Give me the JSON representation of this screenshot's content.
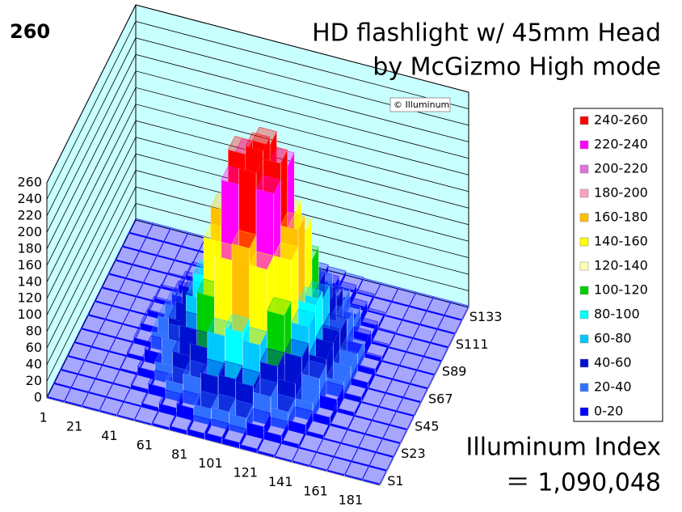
{
  "chart_data": {
    "type": "surface",
    "title": "HD flashlight w/ 45mm Head",
    "subtitle": "by McGizmo  High mode",
    "peak": 260,
    "watermark": "© Illuminum",
    "annotations": [
      "Illuminum Index",
      "＝ 1,090,048"
    ],
    "x_categories": [
      "1",
      null,
      "21",
      null,
      "41",
      null,
      "61",
      null,
      "81",
      null,
      "101",
      null,
      "121",
      null,
      "141",
      null,
      "161",
      null,
      "181"
    ],
    "y_categories": [
      "S1",
      null,
      "S23",
      null,
      "S45",
      null,
      "S67",
      null,
      "S89",
      null,
      "S111",
      null,
      "S133"
    ],
    "zlim": [
      0,
      260
    ],
    "zticks": [
      0,
      20,
      40,
      60,
      80,
      100,
      120,
      140,
      160,
      180,
      200,
      220,
      240,
      260
    ],
    "wall_color": "#c8ffff",
    "bands": [
      {
        "name": "240-260",
        "range": [
          240,
          260
        ],
        "color": "#ff0000"
      },
      {
        "name": "220-240",
        "range": [
          220,
          240
        ],
        "color": "#ff00ff"
      },
      {
        "name": "200-220",
        "range": [
          200,
          220
        ],
        "color": "#e070e0"
      },
      {
        "name": "180-200",
        "range": [
          180,
          200
        ],
        "color": "#ffa0c0"
      },
      {
        "name": "160-180",
        "range": [
          160,
          180
        ],
        "color": "#ffc000"
      },
      {
        "name": "140-160",
        "range": [
          140,
          160
        ],
        "color": "#ffff00"
      },
      {
        "name": "120-140",
        "range": [
          120,
          140
        ],
        "color": "#ffffb0"
      },
      {
        "name": "100-120",
        "range": [
          100,
          120
        ],
        "color": "#00d000"
      },
      {
        "name": "80-100",
        "range": [
          80,
          100
        ],
        "color": "#00ffff"
      },
      {
        "name": "60-80",
        "range": [
          60,
          80
        ],
        "color": "#00c8ff"
      },
      {
        "name": "40-60",
        "range": [
          40,
          60
        ],
        "color": "#0010d0"
      },
      {
        "name": "20-40",
        "range": [
          20,
          40
        ],
        "color": "#3070ff"
      },
      {
        "name": "0-20",
        "range": [
          0,
          20
        ],
        "color": "#0000ff"
      }
    ],
    "values": [
      [
        2,
        2,
        2,
        2,
        2,
        2,
        3,
        5,
        7,
        8,
        7,
        5,
        3,
        2,
        2,
        2,
        2,
        2,
        2
      ],
      [
        2,
        2,
        2,
        2,
        2,
        5,
        10,
        15,
        20,
        22,
        20,
        15,
        10,
        5,
        2,
        2,
        2,
        2,
        2
      ],
      [
        2,
        2,
        2,
        2,
        5,
        12,
        22,
        35,
        42,
        45,
        42,
        35,
        22,
        12,
        5,
        2,
        2,
        2,
        2
      ],
      [
        2,
        2,
        2,
        3,
        10,
        22,
        40,
        55,
        75,
        85,
        75,
        55,
        40,
        22,
        10,
        3,
        2,
        2,
        2
      ],
      [
        2,
        2,
        2,
        5,
        15,
        35,
        55,
        100,
        150,
        170,
        150,
        100,
        55,
        35,
        15,
        5,
        2,
        2,
        2
      ],
      [
        2,
        2,
        2,
        7,
        20,
        42,
        75,
        150,
        225,
        245,
        225,
        150,
        75,
        42,
        20,
        7,
        2,
        2,
        2
      ],
      [
        2,
        2,
        2,
        8,
        22,
        45,
        85,
        170,
        245,
        255,
        245,
        170,
        85,
        45,
        22,
        8,
        2,
        2,
        2
      ],
      [
        2,
        2,
        2,
        7,
        20,
        42,
        75,
        150,
        225,
        245,
        225,
        150,
        75,
        42,
        20,
        7,
        2,
        2,
        2
      ],
      [
        2,
        2,
        2,
        5,
        15,
        35,
        55,
        100,
        150,
        170,
        150,
        100,
        55,
        35,
        15,
        5,
        2,
        2,
        2
      ],
      [
        2,
        2,
        2,
        3,
        10,
        22,
        40,
        55,
        75,
        85,
        75,
        55,
        40,
        22,
        10,
        3,
        2,
        2,
        2
      ],
      [
        2,
        2,
        2,
        2,
        5,
        12,
        22,
        35,
        42,
        45,
        42,
        35,
        22,
        12,
        5,
        2,
        2,
        2,
        2
      ],
      [
        2,
        2,
        2,
        2,
        2,
        5,
        10,
        15,
        20,
        22,
        20,
        15,
        10,
        5,
        2,
        2,
        2,
        2,
        2
      ],
      [
        2,
        2,
        2,
        2,
        2,
        2,
        3,
        5,
        7,
        8,
        7,
        5,
        3,
        2,
        2,
        2,
        2,
        2,
        2
      ]
    ]
  }
}
